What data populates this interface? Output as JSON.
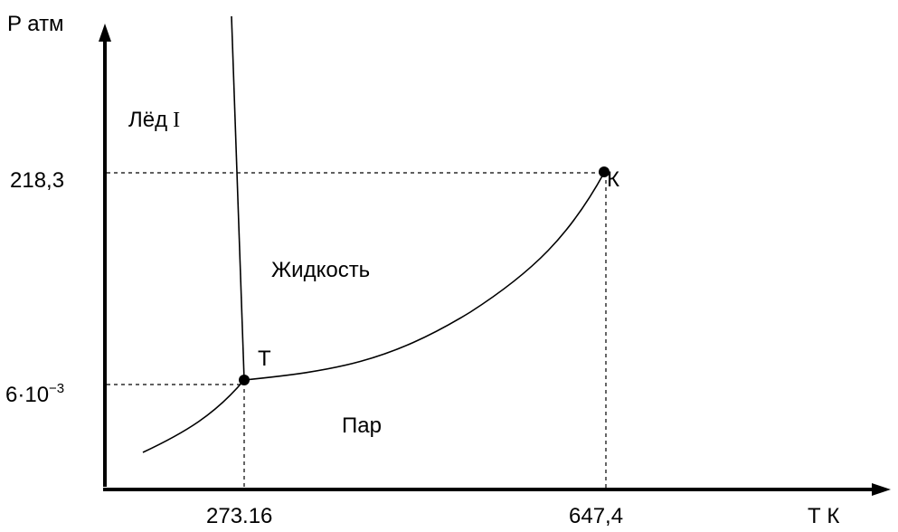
{
  "axes": {
    "y_label": "P атм",
    "x_label": "Т К"
  },
  "y_ticks": {
    "critical_pressure": "218,3",
    "triple_pressure_base": "6·10",
    "triple_pressure_exp": "−3"
  },
  "x_ticks": {
    "triple_temperature": "273.16",
    "critical_temperature": "647,4"
  },
  "regions": {
    "ice": "Лёд",
    "ice_numeral": "I",
    "liquid": "Жидкость",
    "vapor": "Пар"
  },
  "points": {
    "triple": "Т",
    "critical": "К"
  }
}
